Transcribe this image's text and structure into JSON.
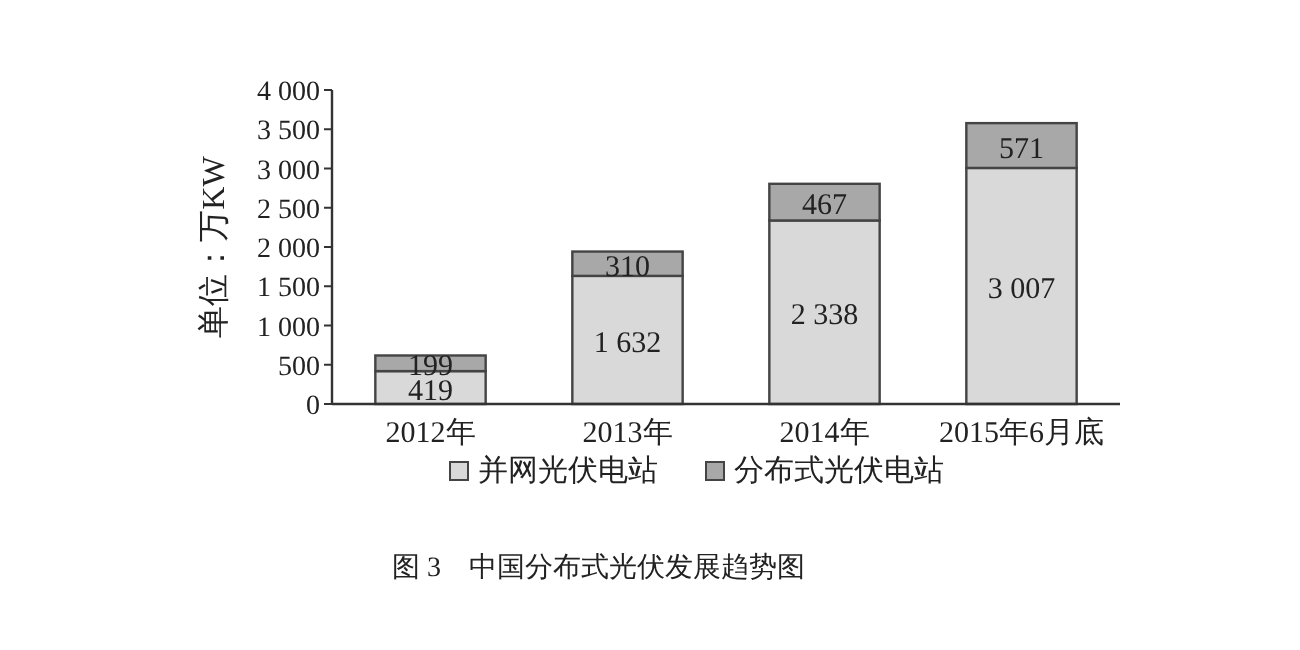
{
  "chart_data": {
    "type": "bar",
    "stacked": true,
    "title": "图 3    中国分布式光伏发展趋势图",
    "ylabel": "单位：万KW",
    "categories": [
      "2012年",
      "2013年",
      "2014年",
      "2015年6月底"
    ],
    "series": [
      {
        "name": "并网光伏电站",
        "color": "#d9d9d9",
        "values": [
          419,
          1632,
          2338,
          3007
        ],
        "value_labels": [
          "419",
          "1 632",
          "2 338",
          "3 007"
        ]
      },
      {
        "name": "分布式光伏电站",
        "color": "#a8a8a8",
        "values": [
          199,
          310,
          467,
          571
        ],
        "value_labels": [
          "199",
          "310",
          "467",
          "571"
        ]
      }
    ],
    "ylim": [
      0,
      4000
    ],
    "yticks": [
      0,
      500,
      {
        "value": 1000,
        "label": "1 000"
      },
      {
        "value": 1500,
        "label": "1 500"
      },
      {
        "value": 2000,
        "label": "2 000"
      },
      {
        "value": 2500,
        "label": "2 500"
      },
      {
        "value": 3000,
        "label": "3 000"
      },
      {
        "value": 3500,
        "label": "3 500"
      },
      {
        "value": 4000,
        "label": "4 000"
      }
    ],
    "grid": false,
    "legend": "bottom"
  }
}
